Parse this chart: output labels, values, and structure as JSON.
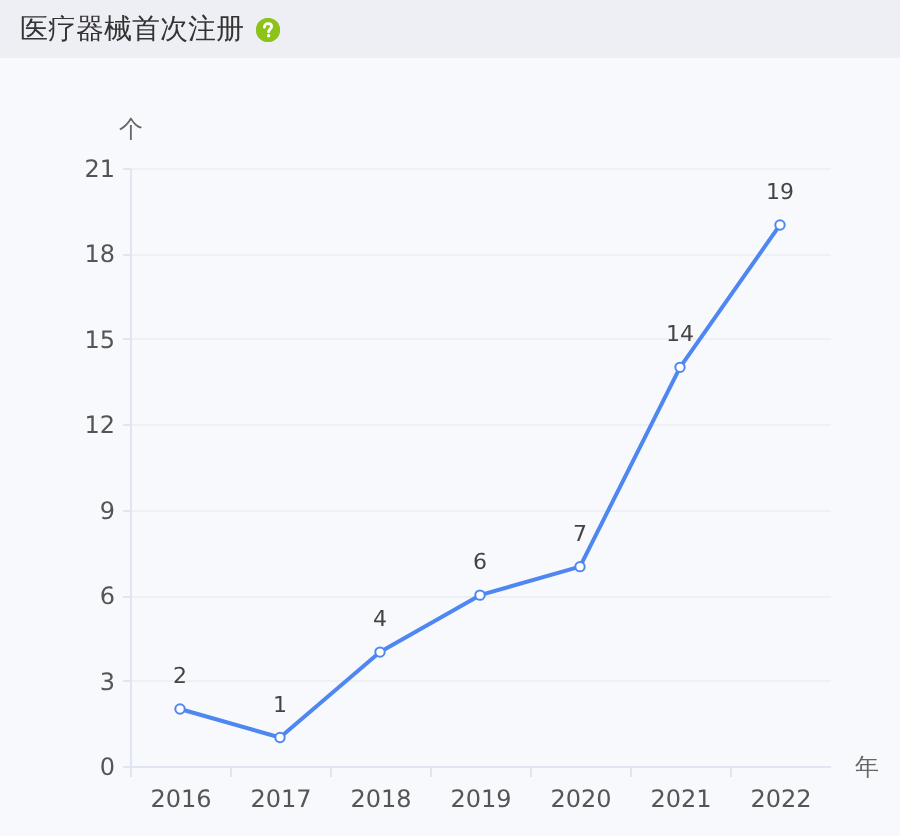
{
  "chart_data": {
    "type": "line",
    "title": "医疗器械首次注册",
    "xlabel": "年",
    "ylabel": "个",
    "categories": [
      "2016",
      "2017",
      "2018",
      "2019",
      "2020",
      "2021",
      "2022"
    ],
    "values": [
      2,
      1,
      4,
      6,
      7,
      14,
      19
    ],
    "color": "#4e87f2",
    "ylim": [
      0,
      21
    ],
    "yticks": [
      0,
      3,
      6,
      9,
      12,
      15,
      18,
      21
    ],
    "grid": "y",
    "data_labels": true,
    "marker": "circle"
  }
}
